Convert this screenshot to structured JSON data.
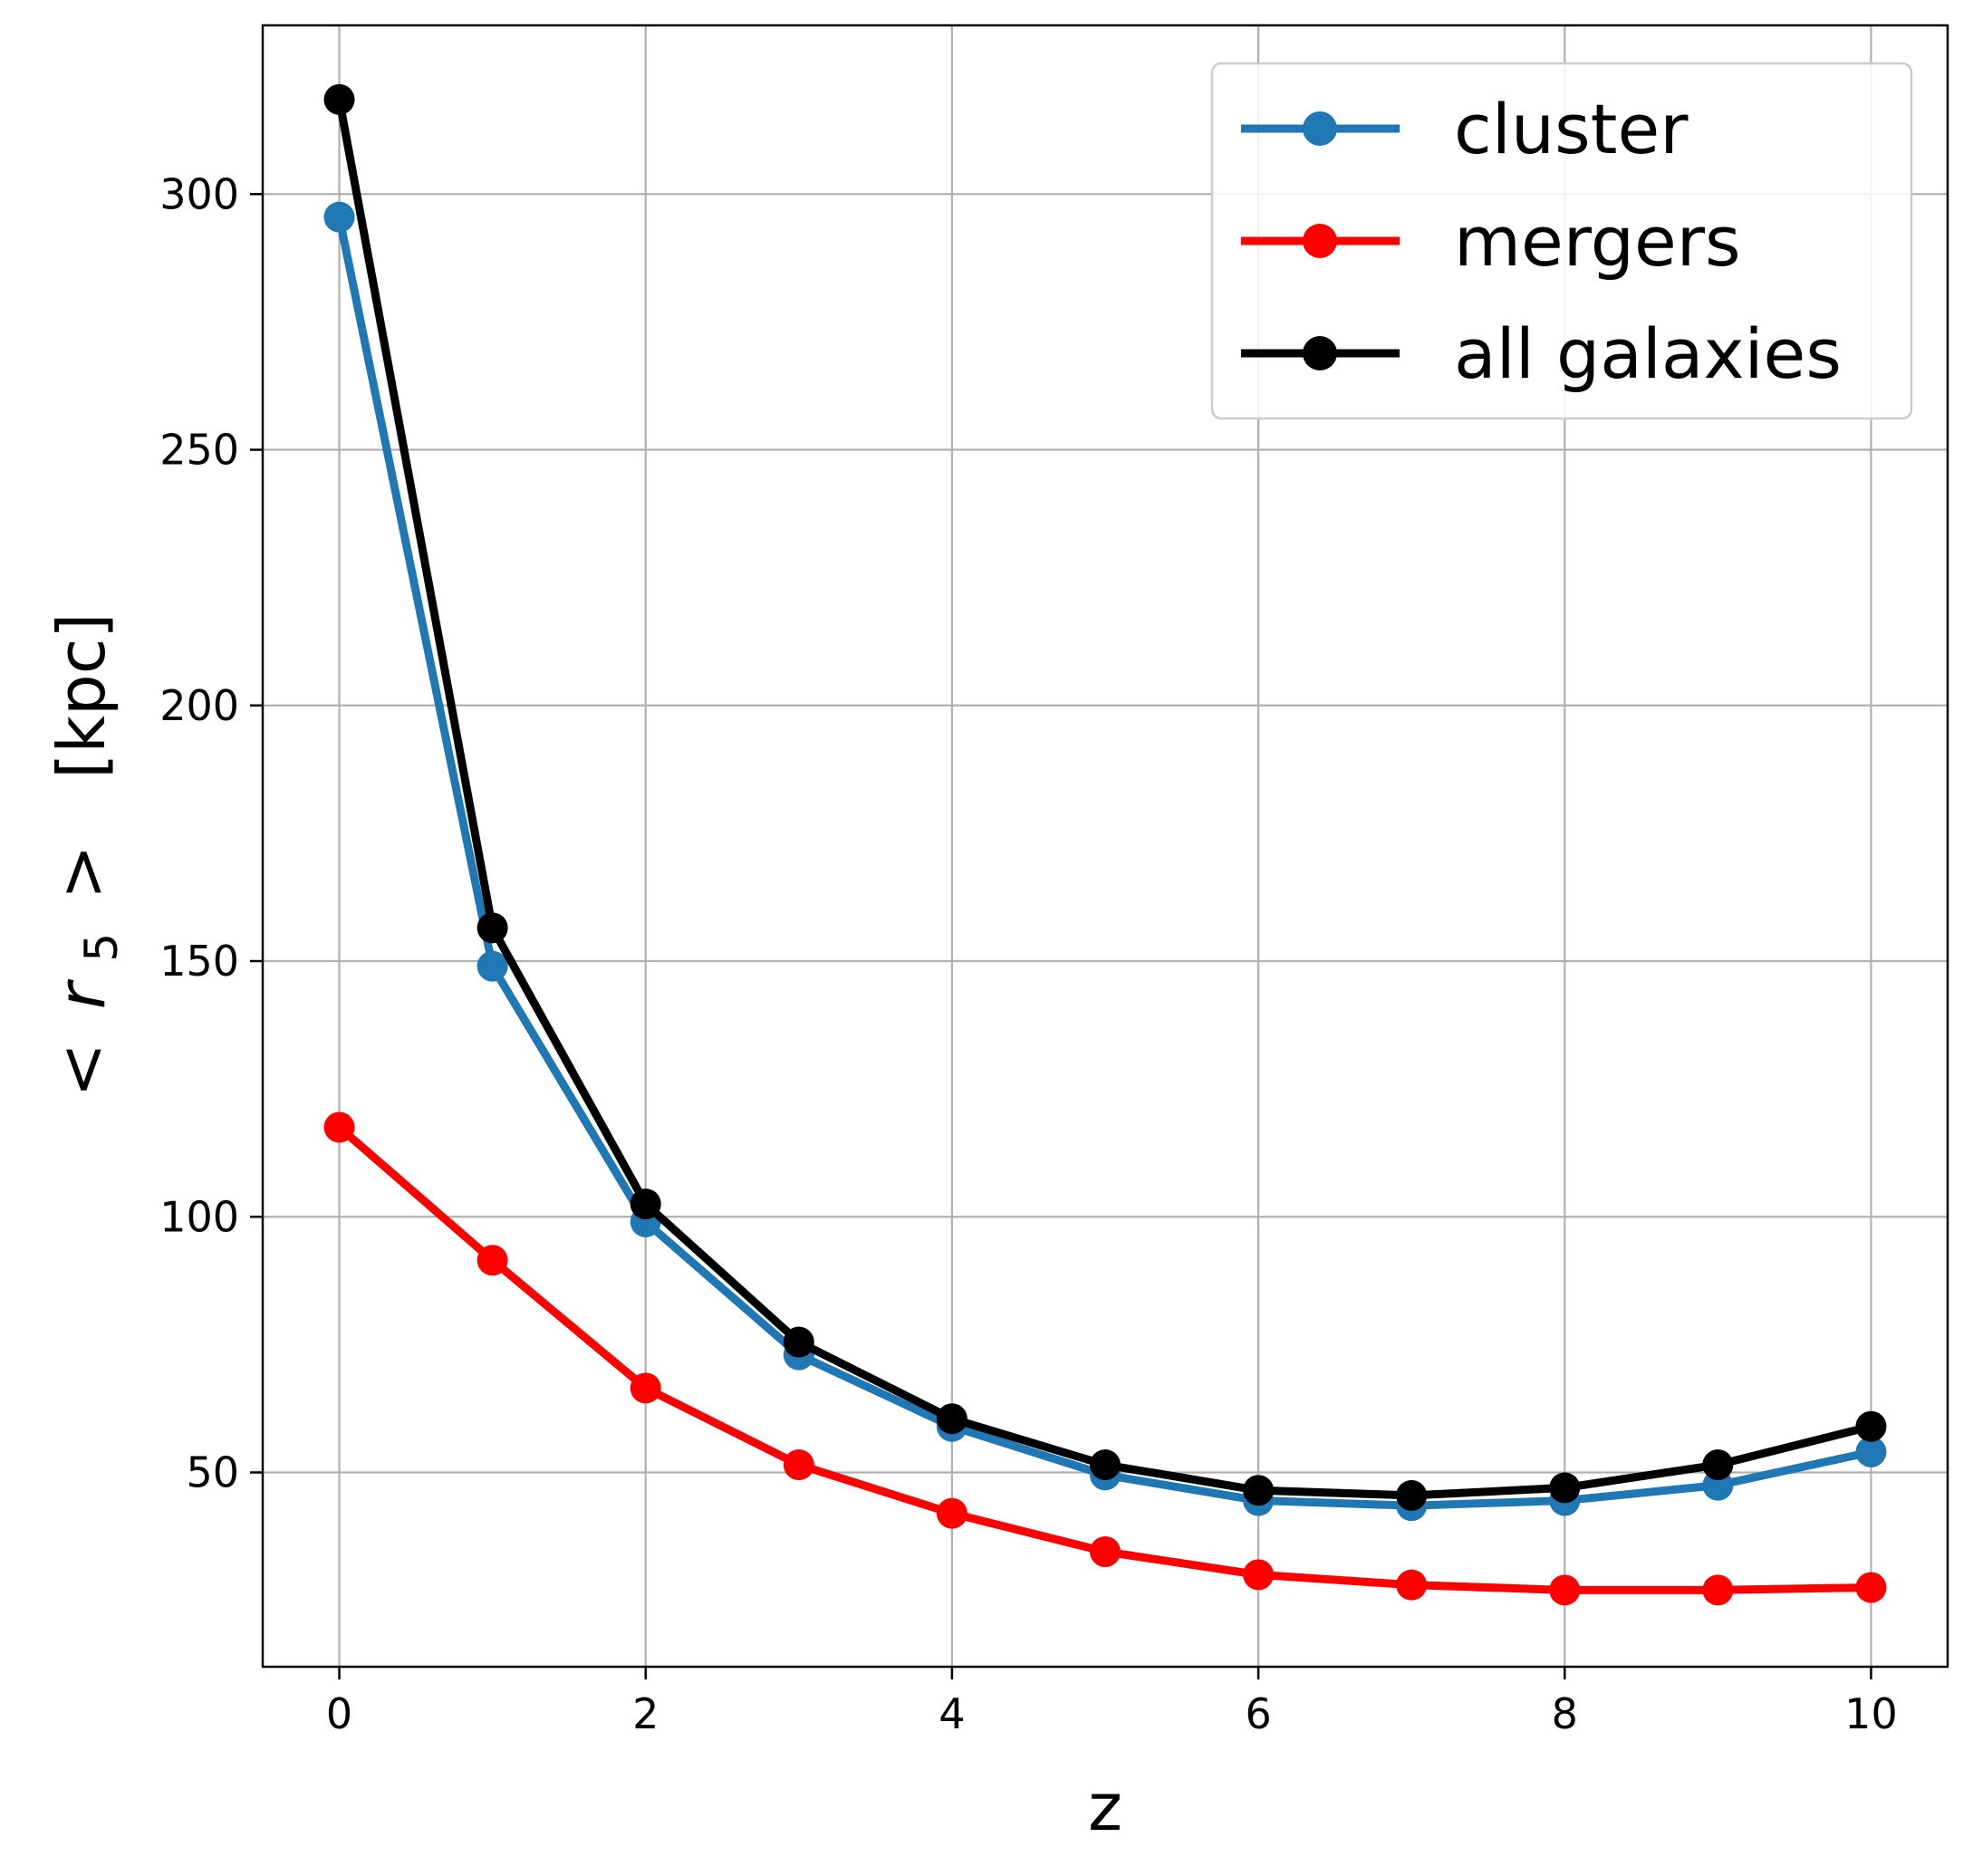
{
  "chart_data": {
    "type": "line",
    "title": "",
    "xlabel": "z",
    "ylabel": "< r_5 >  [kpc]",
    "ylabel_parts": {
      "open": "<",
      "var": "r",
      "sub": "5",
      "close": ">",
      "unit": "[kpc]"
    },
    "x": [
      0,
      1,
      2,
      3,
      4,
      5,
      6,
      7,
      8,
      9,
      10
    ],
    "xlim": [
      -0.5,
      10.5
    ],
    "ylim": [
      12,
      333
    ],
    "xticks": [
      0,
      2,
      4,
      6,
      8,
      10
    ],
    "yticks": [
      50,
      100,
      150,
      200,
      250,
      300
    ],
    "grid": true,
    "legend_position": "top-right",
    "series": [
      {
        "name": "cluster",
        "color": "#1f77b4",
        "values": [
          295.5,
          149,
          99,
          73,
          59,
          49.5,
          44.5,
          43.5,
          44.5,
          47.5,
          54
        ]
      },
      {
        "name": "mergers",
        "color": "#ff0000",
        "values": [
          117.5,
          91.5,
          66.5,
          51.5,
          42,
          34.5,
          30,
          28,
          27,
          27,
          27.5
        ]
      },
      {
        "name": "all galaxies",
        "color": "#000000",
        "values": [
          318.5,
          156.5,
          102.5,
          75.5,
          60.5,
          51.5,
          46.5,
          45.5,
          47,
          51.5,
          59
        ]
      }
    ]
  }
}
